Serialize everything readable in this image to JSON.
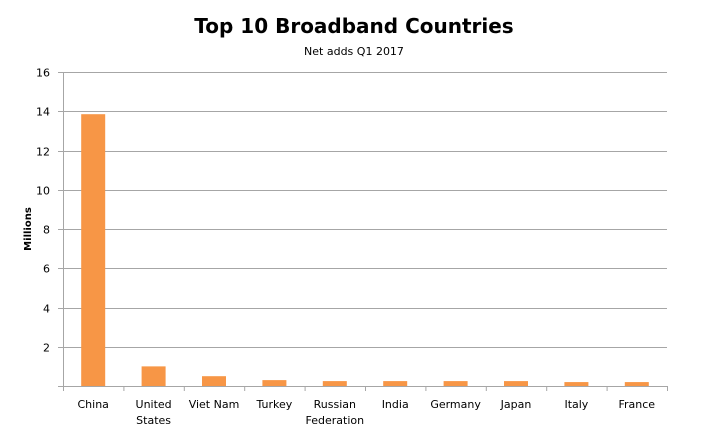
{
  "chart_data": {
    "type": "bar",
    "title": "Top 10 Broadband Countries",
    "subtitle": "Net adds Q1 2017",
    "ylabel": "Millions",
    "xlabel": "",
    "ylim": [
      0,
      16
    ],
    "yticks": [
      0,
      2,
      4,
      6,
      8,
      10,
      12,
      14,
      16
    ],
    "ytick_labels": [
      "",
      "2",
      "4",
      "6",
      "8",
      "10",
      "12",
      "14",
      "16"
    ],
    "grid": true,
    "legend": "none",
    "bar_color": "#f79646",
    "categories": [
      [
        "China"
      ],
      [
        "United",
        "States"
      ],
      [
        "Viet Nam"
      ],
      [
        "Turkey"
      ],
      [
        "Russian",
        "Federation"
      ],
      [
        "India"
      ],
      [
        "Germany"
      ],
      [
        "Japan"
      ],
      [
        "Italy"
      ],
      [
        "France"
      ]
    ],
    "values": [
      13.85,
      1.0,
      0.5,
      0.3,
      0.25,
      0.25,
      0.25,
      0.25,
      0.2,
      0.2
    ]
  }
}
